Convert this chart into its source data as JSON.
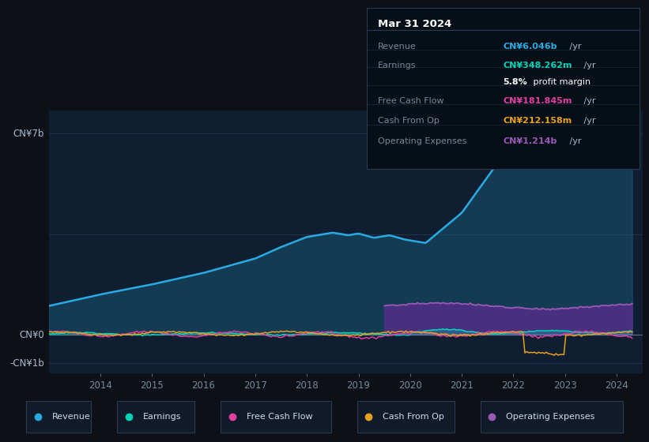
{
  "bg_color": "#0d1117",
  "chart_bg": "#0f1e30",
  "title": "Mar 31 2024",
  "y_label_top": "CN¥7b",
  "y_label_zero": "CN¥0",
  "y_label_neg": "-CN¥1b",
  "x_ticks": [
    "2014",
    "2015",
    "2016",
    "2017",
    "2018",
    "2019",
    "2020",
    "2021",
    "2022",
    "2023",
    "2024"
  ],
  "colors": {
    "revenue": "#29abe2",
    "earnings": "#00d4b8",
    "free_cash_flow": "#e040a0",
    "cash_from_op": "#e8a020",
    "op_expenses": "#9b59b6"
  },
  "legend": [
    {
      "label": "Revenue",
      "color": "#29abe2"
    },
    {
      "label": "Earnings",
      "color": "#00d4b8"
    },
    {
      "label": "Free Cash Flow",
      "color": "#e040a0"
    },
    {
      "label": "Cash From Op",
      "color": "#e8a020"
    },
    {
      "label": "Operating Expenses",
      "color": "#9b59b6"
    }
  ],
  "tooltip": {
    "title": "Mar 31 2024",
    "rows": [
      {
        "label": "Revenue",
        "value": "CN¥6.046b",
        "suffix": " /yr",
        "color": "#29abe2"
      },
      {
        "label": "Earnings",
        "value": "CN¥348.262m",
        "suffix": " /yr",
        "color": "#00d4b8"
      },
      {
        "label": "",
        "value": "5.8%",
        "suffix": " profit margin",
        "color": "#ffffff"
      },
      {
        "label": "Free Cash Flow",
        "value": "CN¥181.845m",
        "suffix": " /yr",
        "color": "#e040a0"
      },
      {
        "label": "Cash From Op",
        "value": "CN¥212.158m",
        "suffix": " /yr",
        "color": "#e8a020"
      },
      {
        "label": "Operating Expenses",
        "value": "CN¥1.214b",
        "suffix": " /yr",
        "color": "#9b59b6"
      }
    ]
  }
}
